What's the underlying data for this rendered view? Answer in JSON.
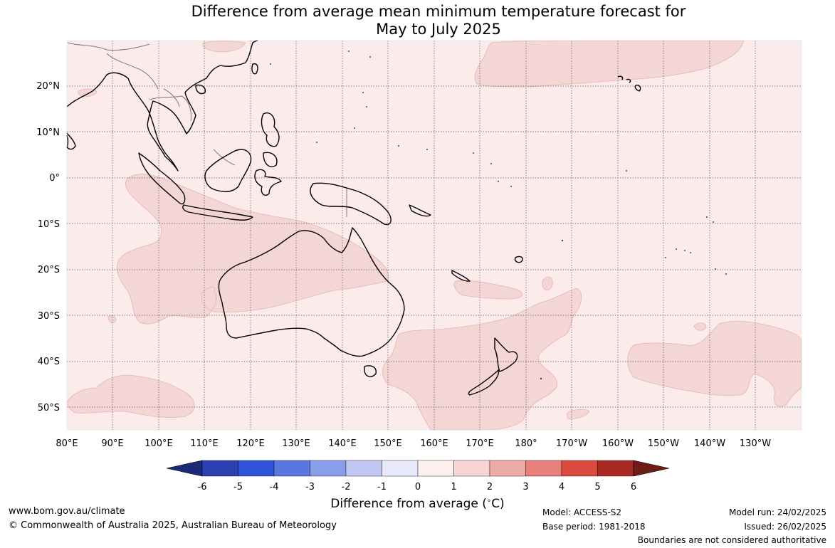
{
  "title": {
    "line1": "Difference from average mean minimum temperature forecast for",
    "line2": "May to July 2025"
  },
  "map": {
    "lon_labels": [
      "80°E",
      "90°E",
      "100°E",
      "110°E",
      "120°E",
      "130°E",
      "140°E",
      "150°E",
      "160°E",
      "170°E",
      "180°",
      "170°W",
      "160°W",
      "150°W",
      "140°W",
      "130°W"
    ],
    "lat_labels": [
      "20°N",
      "10°N",
      "0°",
      "10°S",
      "20°S",
      "30°S",
      "40°S",
      "50°S"
    ],
    "background_color": "#fbeceb",
    "anomaly_shade_color": "#f4d6d4",
    "coast_color": "#000000",
    "border_color": "#7a7a7a",
    "grid_style": "dotted"
  },
  "colorbar": {
    "ticks": [
      "-6",
      "-5",
      "-4",
      "-3",
      "-2",
      "-1",
      "0",
      "1",
      "2",
      "3",
      "4",
      "5",
      "6"
    ],
    "colors": [
      "#1a2a78",
      "#2a3fb0",
      "#2f52d9",
      "#5a76e0",
      "#8a9de8",
      "#c0c8f2",
      "#e8eafb",
      "#fdf0ef",
      "#f7d5d3",
      "#eeaaa5",
      "#e68079",
      "#db4a3e",
      "#a92a23",
      "#6e1d17"
    ],
    "label": "Difference from average (",
    "label_unit": "C)",
    "label_degree": "∘"
  },
  "footer": {
    "website": "www.bom.gov.au/climate",
    "copyright": "© Commonwealth of Australia 2025, Australian Bureau of Meteorology",
    "model": "Model: ACCESS-S2",
    "base_period": "Base period: 1981-2018",
    "model_run": "Model run: 24/02/2025",
    "issued": "Issued: 26/02/2025",
    "disclaimer": "Boundaries are not considered authoritative"
  }
}
